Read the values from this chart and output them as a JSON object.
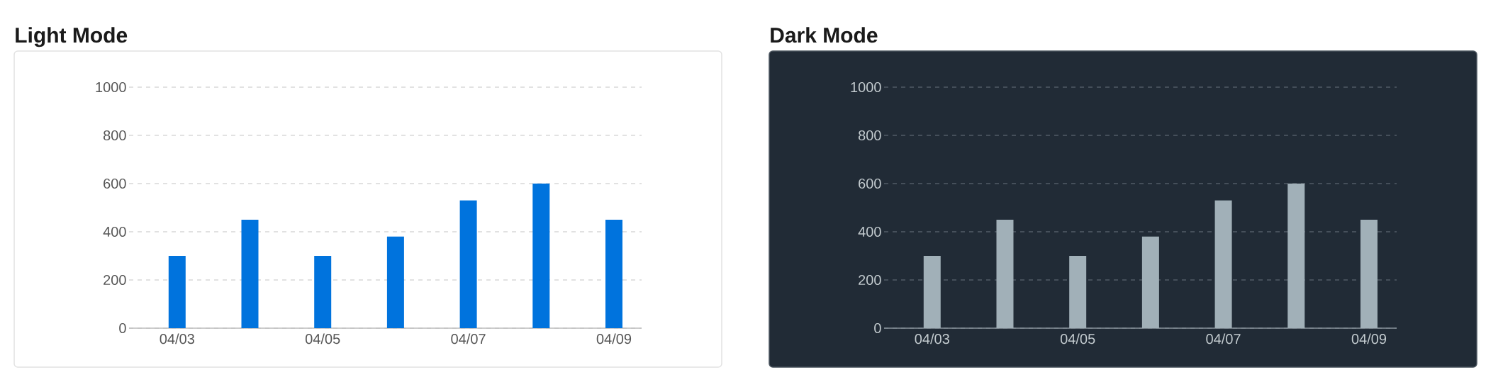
{
  "chart_data": [
    {
      "type": "bar",
      "title": "Light Mode",
      "categories": [
        "04/03",
        null,
        "04/05",
        null,
        "04/07",
        null,
        "04/09"
      ],
      "values": [
        300,
        450,
        300,
        380,
        530,
        600,
        450
      ],
      "color": "#0073dd",
      "ylim": [
        0,
        1000
      ],
      "yticks": [
        0,
        200,
        400,
        600,
        800,
        1000
      ],
      "grid": "y"
    },
    {
      "type": "bar",
      "title": "Dark Mode",
      "categories": [
        "04/03",
        null,
        "04/05",
        null,
        "04/07",
        null,
        "04/09"
      ],
      "values": [
        300,
        450,
        300,
        380,
        530,
        600,
        450
      ],
      "color": "#a1b0b8",
      "ylim": [
        0,
        1000
      ],
      "yticks": [
        0,
        200,
        400,
        600,
        800,
        1000
      ],
      "grid": "y"
    }
  ]
}
